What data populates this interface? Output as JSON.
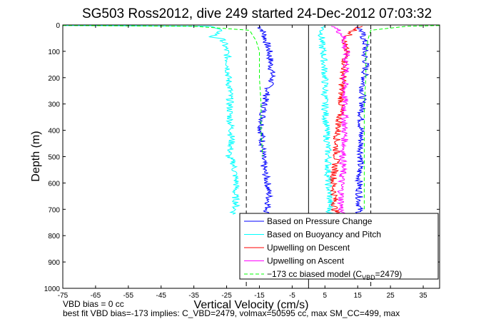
{
  "chart_data": {
    "type": "line",
    "title": "SG503 Ross2012, dive 249 started 24-Dec-2012 07:03:32",
    "xlabel": "Vertical Velocity (cm/s)",
    "ylabel": "Depth (m)",
    "xlim": [
      -75,
      40
    ],
    "ylim": [
      0,
      1000
    ],
    "y_reversed": true,
    "grid": false,
    "legend_position": "bottom-right",
    "xticks": [
      "-75",
      "-65",
      "-55",
      "-45",
      "-35",
      "-25",
      "-15",
      "-5",
      "5",
      "15",
      "25",
      "35"
    ],
    "xtick_values": [
      -75,
      -65,
      -55,
      -45,
      -35,
      -25,
      -15,
      -5,
      5,
      15,
      25,
      35
    ],
    "yticks": [
      "0",
      "100",
      "200",
      "300",
      "400",
      "500",
      "600",
      "700",
      "800",
      "900",
      "1000"
    ],
    "ytick_values": [
      0,
      100,
      200,
      300,
      400,
      500,
      600,
      700,
      800,
      900,
      1000
    ],
    "reference_lines": [
      {
        "x": 0,
        "style": "solid",
        "color": "#000000"
      },
      {
        "x": -19,
        "style": "dashed",
        "color": "#000000"
      },
      {
        "x": 19,
        "style": "dashed",
        "color": "#000000"
      }
    ],
    "series": [
      {
        "name": "Based on Pressure Change",
        "color": "#0000ff",
        "style": "solid",
        "segments": [
          {
            "depth": [
              5,
              20,
              40,
              60,
              80,
              100,
              150,
              200,
              250,
              300,
              350,
              400,
              450,
              500,
              550,
              600,
              650,
              700,
              720
            ],
            "values": [
              -15,
              -14,
              -13.5,
              -13,
              -12.5,
              -12,
              -11.5,
              -11,
              -12.5,
              -13.5,
              -14,
              -14.5,
              -14,
              -14,
              -13.5,
              -12.5,
              -12,
              -12.5,
              -13
            ]
          },
          {
            "depth": [
              5,
              20,
              40,
              60,
              80,
              100,
              150,
              200,
              250,
              300,
              350,
              400,
              450,
              500,
              550,
              600,
              650,
              700,
              720
            ],
            "values": [
              15,
              16,
              16.5,
              17,
              17.5,
              17,
              17.5,
              17,
              16.5,
              16.5,
              16,
              16,
              16,
              16,
              15.5,
              15.5,
              15.5,
              15.5,
              15.5
            ]
          }
        ]
      },
      {
        "name": "Based on Buoyancy and Pitch",
        "color": "#00ffff",
        "style": "solid",
        "segments": [
          {
            "depth": [
              2,
              5,
              15,
              25,
              35,
              45,
              50,
              60,
              80,
              100,
              150,
              200,
              250,
              300,
              350,
              400,
              450,
              480,
              500,
              520,
              560,
              600,
              640,
              680,
              700,
              720
            ],
            "values": [
              -75,
              -30,
              -28,
              -27,
              -28,
              -30,
              -27,
              -26,
              -25.5,
              -25,
              -24.5,
              -24.5,
              -24,
              -24,
              -24,
              -23.5,
              -23.5,
              -24,
              -24.5,
              -23,
              -22.5,
              -22,
              -22.5,
              -22,
              -22.5,
              -23
            ]
          },
          {
            "depth": [
              2,
              10,
              20,
              40,
              60,
              80,
              100,
              200,
              300,
              400,
              500,
              600,
              650,
              700,
              720
            ],
            "values": [
              5,
              4.5,
              4,
              4,
              4,
              4,
              4.5,
              5,
              5,
              5.5,
              6,
              6,
              6.5,
              6.5,
              6.5
            ]
          }
        ]
      },
      {
        "name": "Upwelling on Descent",
        "color": "#ff0000",
        "style": "solid",
        "depth": [
          5,
          20,
          40,
          60,
          80,
          100,
          150,
          200,
          250,
          300,
          350,
          400,
          450,
          500,
          550,
          600,
          650,
          700,
          720
        ],
        "values": [
          16,
          14,
          12,
          11,
          11,
          11.5,
          11,
          10.5,
          10,
          10,
          9.5,
          9,
          8.5,
          8.5,
          8,
          7.5,
          8,
          8,
          9
        ]
      },
      {
        "name": "Upwelling on Ascent",
        "color": "#ff00ff",
        "style": "solid",
        "depth": [
          5,
          20,
          40,
          60,
          80,
          100,
          150,
          200,
          250,
          300,
          350,
          400,
          450,
          500,
          550,
          600,
          650,
          700,
          720
        ],
        "values": [
          8,
          9,
          10.5,
          11,
          11,
          11.5,
          11.5,
          11,
          11,
          11,
          11,
          11,
          11,
          10.5,
          10.5,
          10,
          10,
          10,
          10
        ]
      },
      {
        "name": "-173 cc biased model (C_VBD=2479)",
        "legend_prefix": "−173 cc biased model (C",
        "legend_sub": "VBD",
        "legend_suffix": "=2479)",
        "color": "#00ff00",
        "style": "dashed",
        "segments": [
          {
            "depth": [
              2,
              5,
              20,
              40,
              60,
              80,
              100,
              200,
              300,
              400,
              500
            ],
            "values": [
              -75,
              -35,
              -18,
              -17,
              -16,
              -15.5,
              -15,
              -15,
              -14.5,
              -14.5,
              -14
            ]
          },
          {
            "depth": [
              2,
              5,
              20,
              40,
              60,
              80,
              100,
              200,
              300,
              400,
              500,
              600,
              700
            ],
            "values": [
              40,
              30,
              19,
              18.5,
              18,
              18,
              17.5,
              17.5,
              17,
              17,
              17,
              17,
              17
            ]
          }
        ]
      }
    ]
  },
  "footer": {
    "line1": "VBD bias = 0 cc",
    "line2": "best fit VBD bias=-173 implies: C_VBD=2479, volmax=50595 cc, max SM_CC=499, max"
  }
}
